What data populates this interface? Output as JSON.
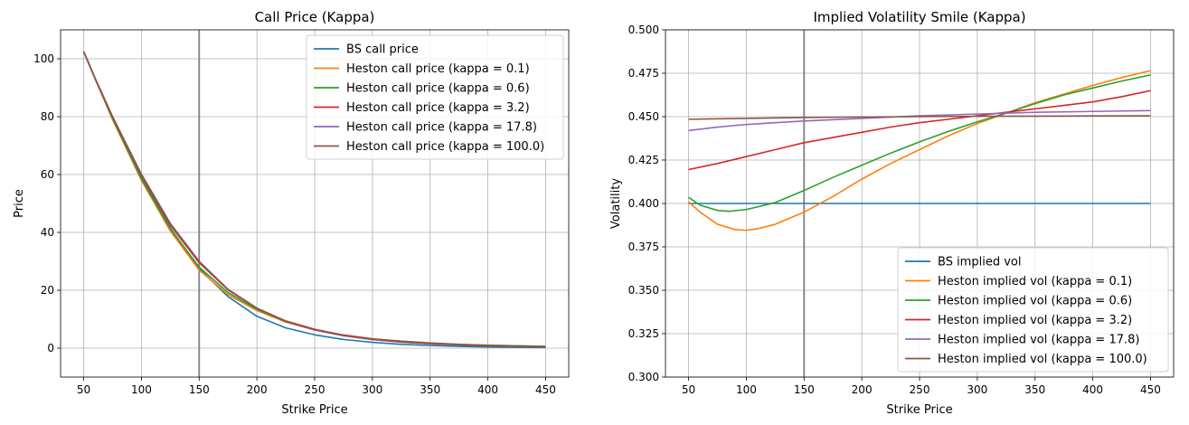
{
  "chart_data": [
    {
      "type": "line",
      "title": "Call Price (Kappa)",
      "xlabel": "Strike Price",
      "ylabel": "Price",
      "xlim": [
        30,
        470
      ],
      "ylim": [
        -10,
        110
      ],
      "xticks": [
        50,
        100,
        150,
        200,
        250,
        300,
        350,
        400,
        450
      ],
      "yticks": [
        0,
        20,
        40,
        60,
        80,
        100
      ],
      "tick_decimals": 0,
      "grid": true,
      "legend_position": "upper right",
      "vline_x": 150,
      "vline_color": "#808080",
      "series": [
        {
          "name": "BS call price",
          "color": "#1f77b4",
          "x": [
            50,
            60,
            75,
            100,
            125,
            150,
            175,
            200,
            225,
            250,
            275,
            300,
            325,
            350,
            375,
            400,
            425,
            450
          ],
          "y": [
            102.5,
            93.0,
            79.5,
            59.0,
            41.5,
            27.5,
            17.8,
            11.0,
            7.0,
            4.6,
            3.0,
            2.0,
            1.3,
            0.9,
            0.6,
            0.4,
            0.3,
            0.2
          ]
        },
        {
          "name": "Heston call price (kappa = 0.1)",
          "color": "#ff7f0e",
          "x": [
            50,
            60,
            75,
            100,
            125,
            150,
            175,
            200,
            225,
            250,
            275,
            300,
            325,
            350,
            375,
            400,
            425,
            450
          ],
          "y": [
            102.5,
            93.0,
            79.0,
            58.0,
            40.5,
            27.0,
            18.5,
            13.0,
            9.0,
            6.3,
            4.5,
            3.2,
            2.4,
            1.8,
            1.3,
            1.0,
            0.8,
            0.6
          ]
        },
        {
          "name": "Heston call price (kappa = 0.6)",
          "color": "#2ca02c",
          "x": [
            50,
            60,
            75,
            100,
            125,
            150,
            175,
            200,
            225,
            250,
            275,
            300,
            325,
            350,
            375,
            400,
            425,
            450
          ],
          "y": [
            102.5,
            93.0,
            79.3,
            58.5,
            41.2,
            28.0,
            19.2,
            13.4,
            9.2,
            6.4,
            4.5,
            3.2,
            2.4,
            1.8,
            1.3,
            1.0,
            0.8,
            0.6
          ]
        },
        {
          "name": "Heston call price (kappa = 3.2)",
          "color": "#d62728",
          "x": [
            50,
            60,
            75,
            100,
            125,
            150,
            175,
            200,
            225,
            250,
            275,
            300,
            325,
            350,
            375,
            400,
            425,
            450
          ],
          "y": [
            102.5,
            93.1,
            79.8,
            59.6,
            42.5,
            29.5,
            20.1,
            13.8,
            9.4,
            6.5,
            4.5,
            3.2,
            2.3,
            1.7,
            1.2,
            0.9,
            0.7,
            0.5
          ]
        },
        {
          "name": "Heston call price (kappa = 17.8)",
          "color": "#9467bd",
          "x": [
            50,
            60,
            75,
            100,
            125,
            150,
            175,
            200,
            225,
            250,
            275,
            300,
            325,
            350,
            375,
            400,
            425,
            450
          ],
          "y": [
            102.5,
            93.2,
            80.0,
            60.0,
            43.0,
            29.9,
            20.3,
            13.8,
            9.3,
            6.3,
            4.3,
            3.0,
            2.1,
            1.5,
            1.1,
            0.8,
            0.6,
            0.4
          ]
        },
        {
          "name": "Heston call price (kappa = 100.0)",
          "color": "#8c564b",
          "x": [
            50,
            60,
            75,
            100,
            125,
            150,
            175,
            200,
            225,
            250,
            275,
            300,
            325,
            350,
            375,
            400,
            425,
            450
          ],
          "y": [
            102.5,
            93.2,
            80.0,
            60.1,
            43.1,
            30.0,
            20.3,
            13.8,
            9.3,
            6.3,
            4.3,
            3.0,
            2.1,
            1.5,
            1.1,
            0.8,
            0.6,
            0.4
          ]
        }
      ]
    },
    {
      "type": "line",
      "title": "Implied Volatility Smile (Kappa)",
      "xlabel": "Strike Price",
      "ylabel": "Volatility",
      "xlim": [
        30,
        470
      ],
      "ylim": [
        0.3,
        0.5
      ],
      "xticks": [
        50,
        100,
        150,
        200,
        250,
        300,
        350,
        400,
        450
      ],
      "yticks": [
        0.3,
        0.325,
        0.35,
        0.375,
        0.4,
        0.425,
        0.45,
        0.475,
        0.5
      ],
      "tick_decimals": 3,
      "grid": true,
      "legend_position": "lower right",
      "vline_x": 150,
      "vline_color": "#808080",
      "series": [
        {
          "name": "BS implied vol",
          "color": "#1f77b4",
          "x": [
            50,
            450
          ],
          "y": [
            0.4,
            0.4
          ]
        },
        {
          "name": "Heston implied vol (kappa = 0.1)",
          "color": "#ff7f0e",
          "x": [
            50,
            60,
            75,
            90,
            100,
            110,
            125,
            150,
            175,
            200,
            225,
            250,
            275,
            300,
            325,
            350,
            375,
            400,
            425,
            450
          ],
          "y": [
            0.401,
            0.395,
            0.388,
            0.385,
            0.3845,
            0.3855,
            0.388,
            0.395,
            0.404,
            0.414,
            0.423,
            0.431,
            0.439,
            0.446,
            0.452,
            0.458,
            0.463,
            0.468,
            0.4725,
            0.4765
          ]
        },
        {
          "name": "Heston implied vol (kappa = 0.6)",
          "color": "#2ca02c",
          "x": [
            50,
            60,
            75,
            85,
            100,
            125,
            150,
            175,
            200,
            225,
            250,
            275,
            300,
            325,
            350,
            375,
            400,
            425,
            450
          ],
          "y": [
            0.4035,
            0.399,
            0.396,
            0.3955,
            0.3965,
            0.4005,
            0.4075,
            0.415,
            0.422,
            0.429,
            0.4355,
            0.4415,
            0.447,
            0.452,
            0.4575,
            0.4625,
            0.4665,
            0.4705,
            0.474
          ]
        },
        {
          "name": "Heston implied vol (kappa = 3.2)",
          "color": "#d62728",
          "x": [
            50,
            75,
            100,
            125,
            150,
            175,
            200,
            225,
            250,
            275,
            300,
            325,
            350,
            375,
            400,
            425,
            450
          ],
          "y": [
            0.4195,
            0.423,
            0.427,
            0.431,
            0.435,
            0.438,
            0.441,
            0.444,
            0.4465,
            0.4485,
            0.4505,
            0.4525,
            0.4545,
            0.4565,
            0.4585,
            0.4615,
            0.465
          ]
        },
        {
          "name": "Heston implied vol (kappa = 17.8)",
          "color": "#9467bd",
          "x": [
            50,
            75,
            100,
            125,
            150,
            200,
            250,
            300,
            350,
            400,
            450
          ],
          "y": [
            0.442,
            0.444,
            0.4455,
            0.4465,
            0.4475,
            0.449,
            0.4505,
            0.4515,
            0.4525,
            0.453,
            0.4535
          ]
        },
        {
          "name": "Heston implied vol (kappa = 100.0)",
          "color": "#8c564b",
          "x": [
            50,
            100,
            150,
            200,
            250,
            300,
            350,
            400,
            450
          ],
          "y": [
            0.4485,
            0.449,
            0.4495,
            0.4498,
            0.45,
            0.4502,
            0.4503,
            0.4504,
            0.4505
          ]
        }
      ]
    }
  ]
}
